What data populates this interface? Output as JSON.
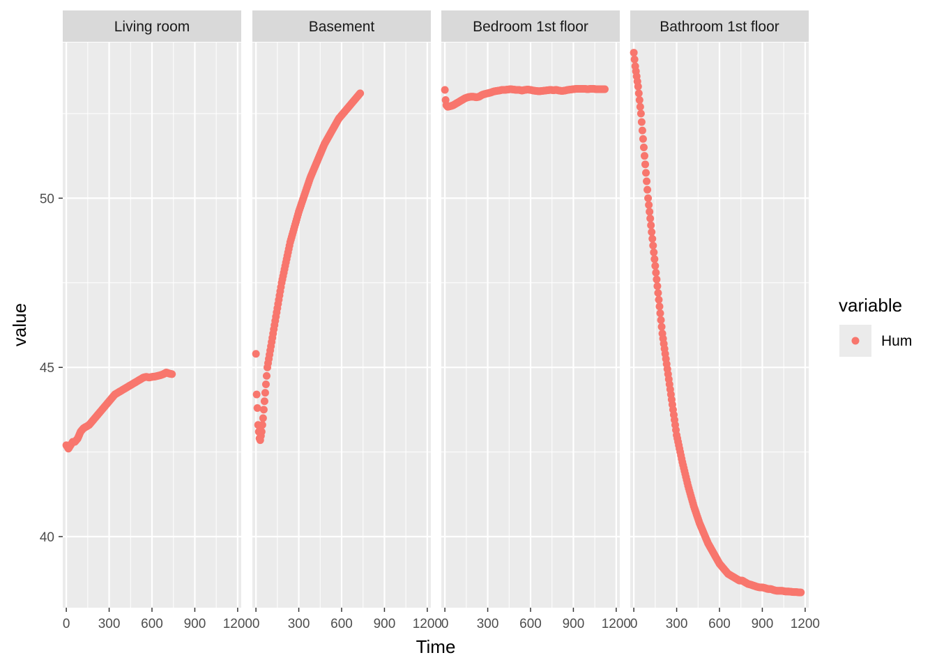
{
  "chart_data": {
    "type": "scatter",
    "facets": [
      "Living room",
      "Basement",
      "Bedroom 1st floor",
      "Bathroom 1st floor"
    ],
    "xlabel": "Time",
    "ylabel": "value",
    "xlim": [
      -25,
      1225
    ],
    "ylim": [
      37.9,
      54.6
    ],
    "x_ticks": [
      0,
      300,
      600,
      900,
      1200
    ],
    "x_tick_labels": [
      "0",
      "300",
      "600",
      "900",
      "1200"
    ],
    "y_ticks": [
      40,
      45,
      50
    ],
    "y_tick_labels": [
      "40",
      "45",
      "50"
    ],
    "grid": true,
    "legend": {
      "title": "variable",
      "position": "right",
      "entries": [
        {
          "label": "Hum",
          "color": "#F8766D"
        }
      ]
    },
    "series": [
      {
        "name": "Hum",
        "color": "#F8766D",
        "facet_points": [
          [
            [
              0,
              42.7
            ],
            [
              15,
              42.6
            ],
            [
              30,
              42.7
            ],
            [
              45,
              42.8
            ],
            [
              60,
              42.8
            ],
            [
              80,
              42.9
            ],
            [
              100,
              43.1
            ],
            [
              120,
              43.2
            ],
            [
              140,
              43.25
            ],
            [
              160,
              43.3
            ],
            [
              180,
              43.4
            ],
            [
              200,
              43.5
            ],
            [
              220,
              43.6
            ],
            [
              240,
              43.7
            ],
            [
              260,
              43.8
            ],
            [
              280,
              43.9
            ],
            [
              300,
              44.0
            ],
            [
              320,
              44.1
            ],
            [
              340,
              44.2
            ],
            [
              360,
              44.25
            ],
            [
              380,
              44.3
            ],
            [
              400,
              44.35
            ],
            [
              420,
              44.4
            ],
            [
              440,
              44.45
            ],
            [
              460,
              44.5
            ],
            [
              480,
              44.55
            ],
            [
              500,
              44.6
            ],
            [
              520,
              44.65
            ],
            [
              540,
              44.7
            ],
            [
              560,
              44.72
            ],
            [
              580,
              44.7
            ],
            [
              600,
              44.72
            ],
            [
              620,
              44.73
            ],
            [
              640,
              44.75
            ],
            [
              660,
              44.77
            ],
            [
              680,
              44.8
            ],
            [
              700,
              44.85
            ],
            [
              720,
              44.82
            ],
            [
              740,
              44.8
            ]
          ],
          [
            [
              0,
              45.4
            ],
            [
              5,
              44.2
            ],
            [
              10,
              43.8
            ],
            [
              15,
              43.3
            ],
            [
              20,
              43.1
            ],
            [
              25,
              42.9
            ],
            [
              30,
              42.85
            ],
            [
              40,
              43.1
            ],
            [
              50,
              43.5
            ],
            [
              60,
              44.0
            ],
            [
              70,
              44.5
            ],
            [
              80,
              45.0
            ],
            [
              100,
              45.5
            ],
            [
              120,
              46.0
            ],
            [
              140,
              46.5
            ],
            [
              160,
              47.0
            ],
            [
              180,
              47.5
            ],
            [
              200,
              47.9
            ],
            [
              220,
              48.3
            ],
            [
              240,
              48.7
            ],
            [
              260,
              49.0
            ],
            [
              280,
              49.3
            ],
            [
              300,
              49.6
            ],
            [
              320,
              49.85
            ],
            [
              340,
              50.1
            ],
            [
              360,
              50.35
            ],
            [
              380,
              50.6
            ],
            [
              400,
              50.8
            ],
            [
              420,
              51.0
            ],
            [
              440,
              51.2
            ],
            [
              460,
              51.4
            ],
            [
              480,
              51.6
            ],
            [
              500,
              51.75
            ],
            [
              520,
              51.9
            ],
            [
              540,
              52.05
            ],
            [
              560,
              52.2
            ],
            [
              580,
              52.35
            ],
            [
              600,
              52.45
            ],
            [
              620,
              52.55
            ],
            [
              640,
              52.65
            ],
            [
              660,
              52.75
            ],
            [
              680,
              52.85
            ],
            [
              700,
              52.95
            ],
            [
              720,
              53.05
            ],
            [
              730,
              53.1
            ]
          ],
          [
            [
              0,
              53.2
            ],
            [
              5,
              52.9
            ],
            [
              10,
              52.75
            ],
            [
              20,
              52.7
            ],
            [
              40,
              52.72
            ],
            [
              60,
              52.75
            ],
            [
              80,
              52.8
            ],
            [
              100,
              52.85
            ],
            [
              120,
              52.9
            ],
            [
              140,
              52.95
            ],
            [
              160,
              52.98
            ],
            [
              180,
              53.0
            ],
            [
              200,
              53.0
            ],
            [
              220,
              52.98
            ],
            [
              240,
              53.0
            ],
            [
              260,
              53.05
            ],
            [
              280,
              53.08
            ],
            [
              300,
              53.1
            ],
            [
              320,
              53.12
            ],
            [
              340,
              53.15
            ],
            [
              360,
              53.17
            ],
            [
              380,
              53.18
            ],
            [
              400,
              53.2
            ],
            [
              420,
              53.2
            ],
            [
              440,
              53.21
            ],
            [
              460,
              53.22
            ],
            [
              480,
              53.21
            ],
            [
              500,
              53.2
            ],
            [
              520,
              53.2
            ],
            [
              540,
              53.18
            ],
            [
              560,
              53.2
            ],
            [
              580,
              53.21
            ],
            [
              600,
              53.2
            ],
            [
              620,
              53.18
            ],
            [
              640,
              53.17
            ],
            [
              660,
              53.16
            ],
            [
              680,
              53.17
            ],
            [
              700,
              53.18
            ],
            [
              720,
              53.19
            ],
            [
              740,
              53.2
            ],
            [
              760,
              53.19
            ],
            [
              780,
              53.2
            ],
            [
              800,
              53.18
            ],
            [
              820,
              53.17
            ],
            [
              840,
              53.18
            ],
            [
              860,
              53.2
            ],
            [
              880,
              53.21
            ],
            [
              900,
              53.22
            ],
            [
              920,
              53.23
            ],
            [
              940,
              53.23
            ],
            [
              960,
              53.23
            ],
            [
              980,
              53.23
            ],
            [
              1000,
              53.22
            ],
            [
              1020,
              53.23
            ],
            [
              1040,
              53.23
            ],
            [
              1060,
              53.22
            ],
            [
              1080,
              53.22
            ],
            [
              1100,
              53.22
            ],
            [
              1120,
              53.22
            ]
          ],
          [
            [
              0,
              54.3
            ],
            [
              10,
              53.9
            ],
            [
              20,
              53.6
            ],
            [
              30,
              53.3
            ],
            [
              40,
              52.9
            ],
            [
              50,
              52.5
            ],
            [
              60,
              52.0
            ],
            [
              70,
              51.5
            ],
            [
              80,
              51.0
            ],
            [
              90,
              50.5
            ],
            [
              100,
              50.0
            ],
            [
              110,
              49.6
            ],
            [
              120,
              49.2
            ],
            [
              130,
              48.8
            ],
            [
              140,
              48.4
            ],
            [
              150,
              48.0
            ],
            [
              160,
              47.6
            ],
            [
              170,
              47.2
            ],
            [
              180,
              46.8
            ],
            [
              190,
              46.4
            ],
            [
              200,
              46.0
            ],
            [
              210,
              45.7
            ],
            [
              220,
              45.4
            ],
            [
              230,
              45.1
            ],
            [
              240,
              44.8
            ],
            [
              250,
              44.5
            ],
            [
              260,
              44.2
            ],
            [
              270,
              43.9
            ],
            [
              280,
              43.6
            ],
            [
              290,
              43.3
            ],
            [
              300,
              43.0
            ],
            [
              320,
              42.6
            ],
            [
              340,
              42.2
            ],
            [
              360,
              41.85
            ],
            [
              380,
              41.5
            ],
            [
              400,
              41.2
            ],
            [
              420,
              40.9
            ],
            [
              440,
              40.65
            ],
            [
              460,
              40.4
            ],
            [
              480,
              40.2
            ],
            [
              500,
              40.0
            ],
            [
              520,
              39.8
            ],
            [
              540,
              39.65
            ],
            [
              560,
              39.5
            ],
            [
              580,
              39.35
            ],
            [
              600,
              39.2
            ],
            [
              620,
              39.1
            ],
            [
              640,
              39.0
            ],
            [
              660,
              38.9
            ],
            [
              680,
              38.85
            ],
            [
              700,
              38.8
            ],
            [
              720,
              38.75
            ],
            [
              740,
              38.7
            ],
            [
              760,
              38.7
            ],
            [
              780,
              38.65
            ],
            [
              800,
              38.6
            ],
            [
              820,
              38.58
            ],
            [
              840,
              38.55
            ],
            [
              860,
              38.52
            ],
            [
              880,
              38.5
            ],
            [
              900,
              38.5
            ],
            [
              920,
              38.48
            ],
            [
              940,
              38.45
            ],
            [
              960,
              38.45
            ],
            [
              980,
              38.42
            ],
            [
              1000,
              38.4
            ],
            [
              1020,
              38.4
            ],
            [
              1040,
              38.4
            ],
            [
              1060,
              38.38
            ],
            [
              1080,
              38.38
            ],
            [
              1100,
              38.37
            ],
            [
              1120,
              38.36
            ],
            [
              1140,
              38.36
            ],
            [
              1160,
              38.35
            ],
            [
              1170,
              38.35
            ]
          ]
        ]
      }
    ]
  }
}
